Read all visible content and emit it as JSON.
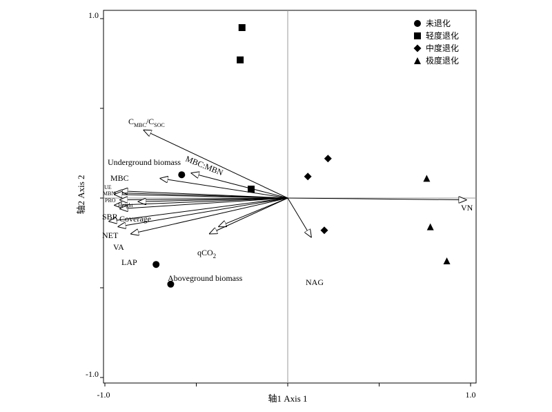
{
  "chart_data": {
    "type": "scatter",
    "xlabel": "轴1 Axis 1",
    "ylabel": "轴2 Axis 2",
    "xlim": [
      -1.0,
      1.0
    ],
    "ylim": [
      -1.0,
      1.0
    ],
    "x_ticks": [
      "-1.0",
      "1.0"
    ],
    "y_ticks": [
      "1.0",
      "-1.0"
    ],
    "legend_position": "top-right",
    "series": [
      {
        "name": "未退化",
        "marker": "circle",
        "points": [
          [
            -0.58,
            0.13
          ],
          [
            -0.72,
            -0.37
          ],
          [
            -0.64,
            -0.48
          ]
        ]
      },
      {
        "name": "轻度退化",
        "marker": "square",
        "points": [
          [
            -0.25,
            0.95
          ],
          [
            -0.26,
            0.77
          ],
          [
            -0.2,
            0.05
          ]
        ]
      },
      {
        "name": "中度退化",
        "marker": "diamond",
        "points": [
          [
            0.22,
            0.22
          ],
          [
            0.11,
            0.12
          ],
          [
            0.2,
            -0.18
          ]
        ]
      },
      {
        "name": "极度退化",
        "marker": "triangle",
        "points": [
          [
            0.76,
            0.11
          ],
          [
            0.78,
            -0.16
          ],
          [
            0.87,
            -0.35
          ]
        ]
      }
    ],
    "vectors": [
      {
        "label": "CMBC/CSOC",
        "x": -0.79,
        "y": 0.38
      },
      {
        "label": "MBC:MBN",
        "x": -0.53,
        "y": 0.14
      },
      {
        "label": "Underground biomass",
        "x": -0.7,
        "y": 0.11
      },
      {
        "label": "MBC",
        "x": -0.92,
        "y": 0.04
      },
      {
        "label": "UE",
        "x": -0.95,
        "y": 0.03
      },
      {
        "label": "MBN",
        "x": -0.95,
        "y": 0.02
      },
      {
        "label": "PRO",
        "x": -0.92,
        "y": -0.01
      },
      {
        "label": "Height",
        "x": -0.82,
        "y": -0.02
      },
      {
        "label": "SBR",
        "x": -0.95,
        "y": -0.04
      },
      {
        "label": "Coverage",
        "x": -0.92,
        "y": -0.06
      },
      {
        "label": "NET",
        "x": -0.98,
        "y": -0.13
      },
      {
        "label": "VA",
        "x": -0.93,
        "y": -0.16
      },
      {
        "label": "LAP",
        "x": -0.86,
        "y": -0.2
      },
      {
        "label": "qCO2",
        "x": -0.38,
        "y": -0.16
      },
      {
        "label": "Aboveground biomass",
        "x": -0.43,
        "y": -0.2
      },
      {
        "label": "NAG",
        "x": 0.13,
        "y": -0.22
      },
      {
        "label": "VN",
        "x": 0.98,
        "y": -0.01
      }
    ]
  }
}
